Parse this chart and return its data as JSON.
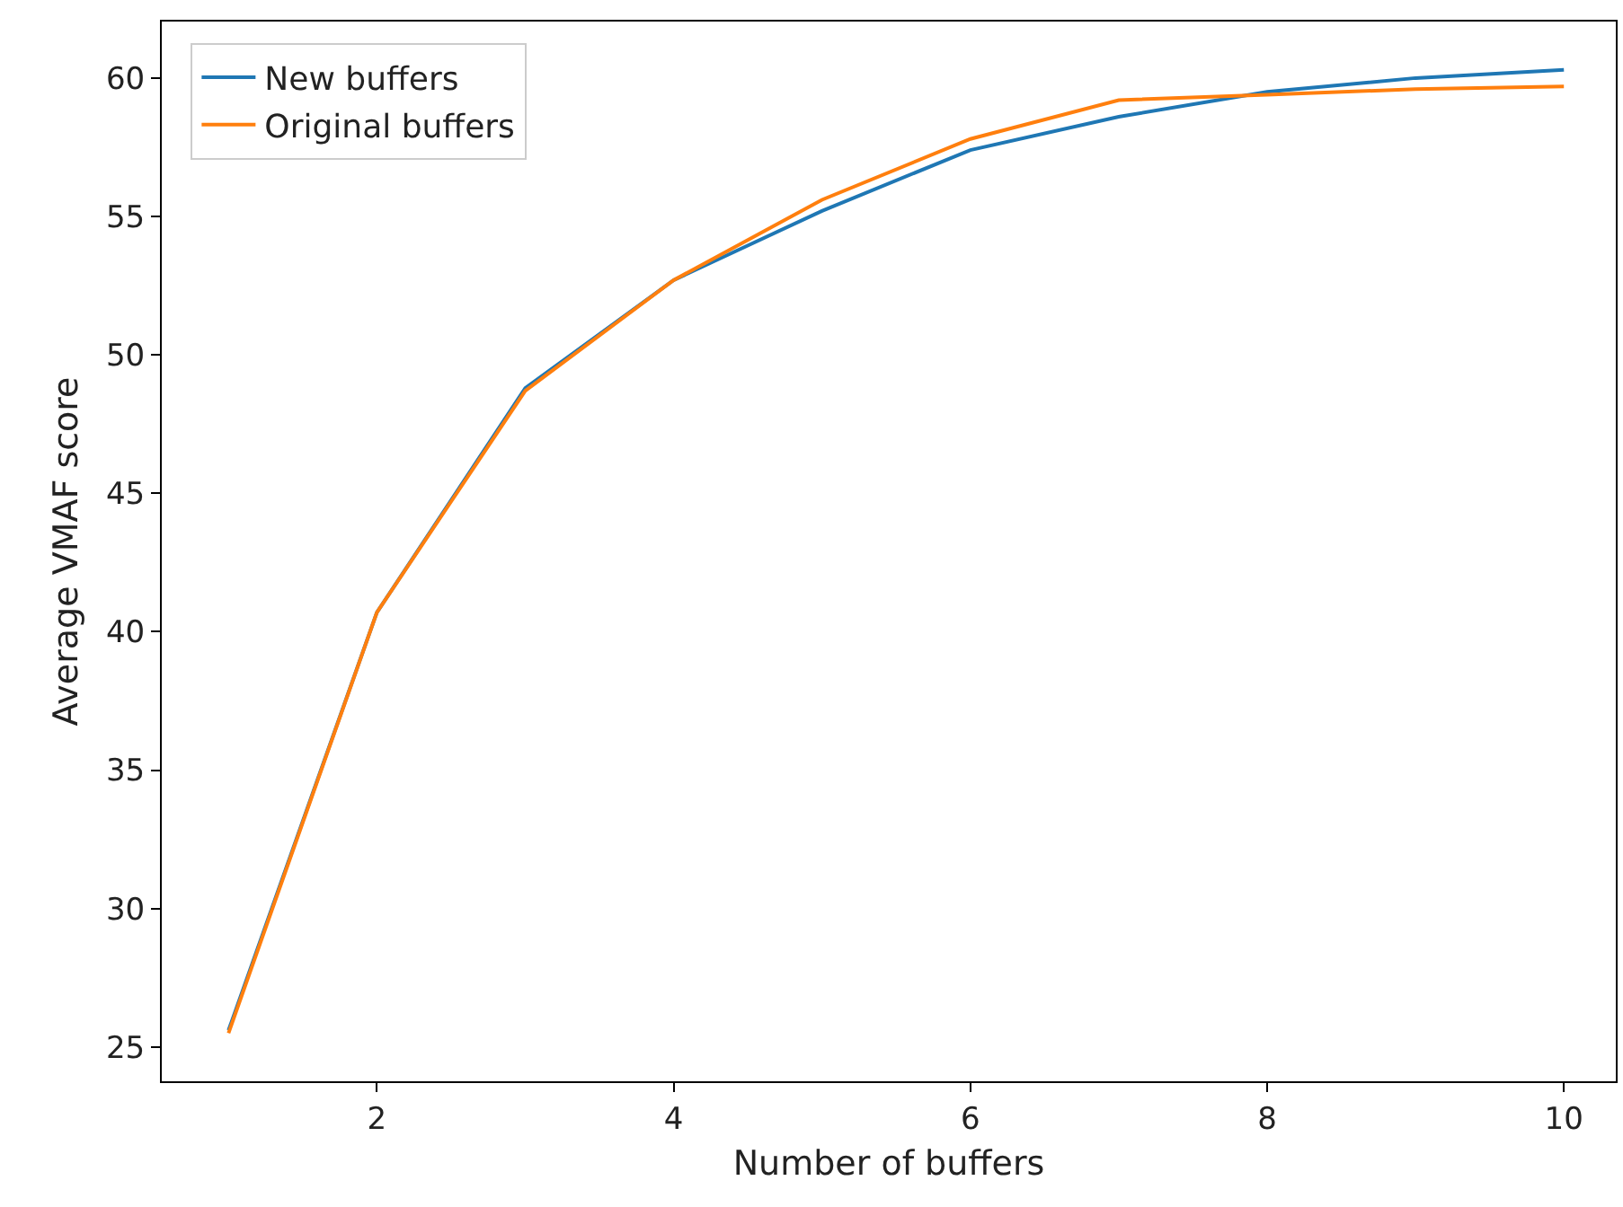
{
  "chart_data": {
    "type": "line",
    "xlabel": "Number of buffers",
    "ylabel": "Average VMAF score",
    "x": [
      1,
      2,
      3,
      4,
      5,
      6,
      7,
      8,
      9,
      10
    ],
    "series": [
      {
        "name": "New buffers",
        "color": "#1f77b4",
        "values": [
          25.6,
          40.7,
          48.8,
          52.7,
          55.2,
          57.4,
          58.6,
          59.5,
          60.0,
          60.3
        ]
      },
      {
        "name": "Original buffers",
        "color": "#ff7f0e",
        "values": [
          25.5,
          40.7,
          48.7,
          52.7,
          55.6,
          57.8,
          59.2,
          59.4,
          59.6,
          59.7
        ]
      }
    ],
    "xlim": [
      0.55,
      10.35
    ],
    "ylim": [
      23.76,
      62.04
    ],
    "xticks": [
      2,
      4,
      6,
      8,
      10
    ],
    "yticks": [
      25,
      30,
      35,
      40,
      45,
      50,
      55,
      60
    ],
    "legend": "top left",
    "marker": "none",
    "line_style": "solid"
  }
}
